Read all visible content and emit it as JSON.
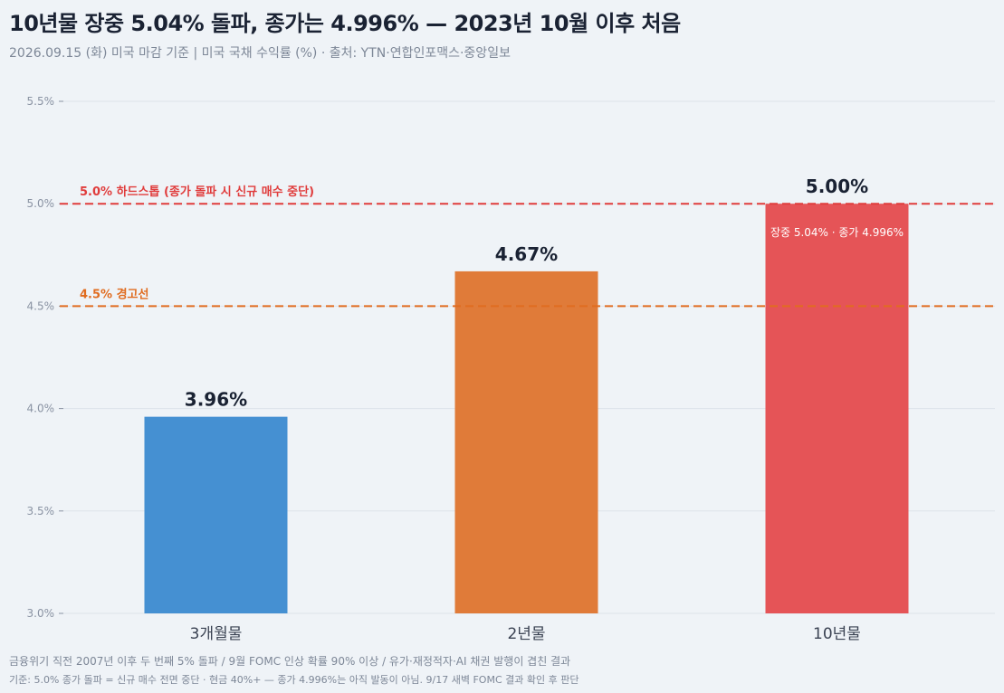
{
  "title": "10년물 장중 5.04% 돌파, 종가는 4.996% — 2023년 10월 이후 처음",
  "subtitle": "2026.09.15 (화) 미국 마감 기준  |  미국 국채 수익률 (%)  ·  출처: YTN·연합인포맥스·중앙일보",
  "footnote_1": "금융위기 직전 2007년 이후 두 번째 5% 돌파 / 9월 FOMC 인상 확률 90% 이상 / 유가·재정적자·AI 채권 발행이 겹친 결과",
  "footnote_2": "기준: 5.0% 종가 돌파 = 신규 매수 전면 중단 · 현금 40%+ — 종가 4.996%는 아직 발동이 아님. 9/17 새벽 FOMC 결과 확인 후 판단",
  "chart_data": {
    "type": "bar",
    "categories": [
      "3개월물",
      "2년물",
      "10년물"
    ],
    "values": [
      3.96,
      4.67,
      5.0
    ],
    "value_labels": [
      "3.96%",
      "4.67%",
      "5.00%"
    ],
    "bar_colors": [
      "#4590d2",
      "#e07b39",
      "#e55457"
    ],
    "bar_annotations": [
      "",
      "",
      "장중 5.04% · 종가 4.996%"
    ],
    "ylim": [
      3.0,
      5.5
    ],
    "yticks": [
      3.0,
      3.5,
      4.0,
      4.5,
      5.0,
      5.5
    ],
    "ytick_labels": [
      "3.0%",
      "3.5%",
      "4.0%",
      "4.5%",
      "5.0%",
      "5.5%"
    ],
    "grid": true,
    "reference_lines": [
      {
        "value": 5.0,
        "label": "5.0% 하드스톱 (종가 돌파 시 신규 매수 중단)",
        "color": "#e03c3c"
      },
      {
        "value": 4.5,
        "label": "4.5% 경고선",
        "color": "#e06c20"
      }
    ]
  }
}
